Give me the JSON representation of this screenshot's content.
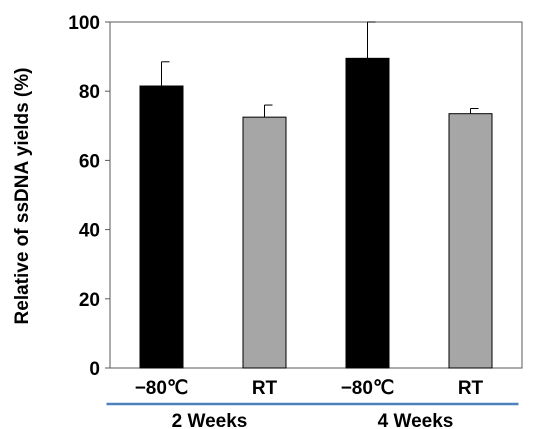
{
  "chart_data": {
    "type": "bar",
    "title": "",
    "xlabel": "",
    "ylabel": "Relative of ssDNA yields (%)",
    "ylim": [
      0,
      100
    ],
    "yticks": [
      0,
      20,
      40,
      60,
      80,
      100
    ],
    "grid": false,
    "categories": [
      "−80℃",
      "RT",
      "−80℃",
      "RT"
    ],
    "values": [
      81.5,
      72.5,
      89.5,
      73.5
    ],
    "errors": [
      7.0,
      3.5,
      10.5,
      1.5
    ],
    "bar_colors": [
      "#000000",
      "#a6a6a6",
      "#000000",
      "#a6a6a6"
    ],
    "groups": [
      {
        "label": "2 Weeks",
        "categories": [
          0,
          1
        ]
      },
      {
        "label": "4 Weeks",
        "categories": [
          2,
          3
        ]
      }
    ],
    "group_underline_color": "#4f81bd"
  }
}
